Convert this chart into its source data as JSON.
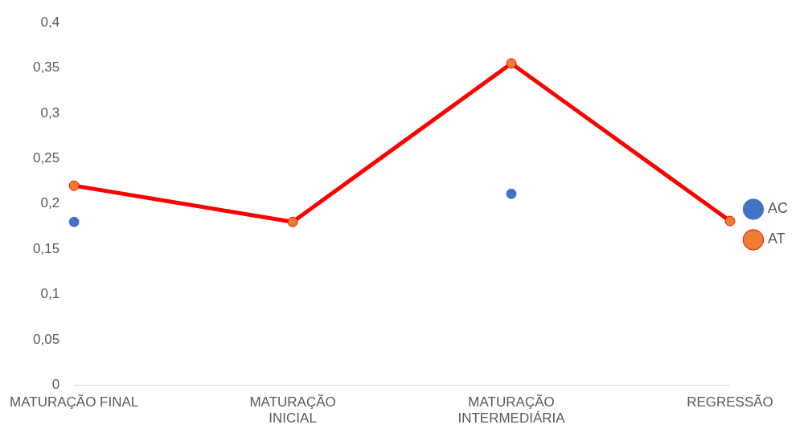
{
  "chart_data": {
    "type": "line",
    "categories": [
      "MATURAÇÃO FINAL",
      "MATURAÇÃO INICIAL",
      "MATURAÇÃO INTERMEDIÁRIA",
      "REGRESSÃO"
    ],
    "series": [
      {
        "name": "AC",
        "type": "scatter",
        "color": "#4472c4",
        "values": [
          0.18,
          null,
          0.211,
          null
        ]
      },
      {
        "name": "AT",
        "color": "#ff0000",
        "colors": [
          "#ed7d31",
          "#ed7d31",
          "#ed7d31",
          "#ed7d31"
        ],
        "values": [
          0.22,
          0.18,
          0.355,
          0.181
        ]
      }
    ],
    "ylim": [
      0,
      0.4
    ],
    "yticks": [
      {
        "value": 0,
        "label": "0"
      },
      {
        "value": 0.05,
        "label": "0,05"
      },
      {
        "value": 0.1,
        "label": "0,1"
      },
      {
        "value": 0.15,
        "label": "0,15"
      },
      {
        "value": 0.2,
        "label": "0,2"
      },
      {
        "value": 0.25,
        "label": "0,25"
      },
      {
        "value": 0.3,
        "label": "0,3"
      },
      {
        "value": 0.35,
        "label": "0,35"
      },
      {
        "value": 0.4,
        "label": "0,4"
      }
    ],
    "grid": false,
    "legend": "right",
    "marker": "circle"
  }
}
